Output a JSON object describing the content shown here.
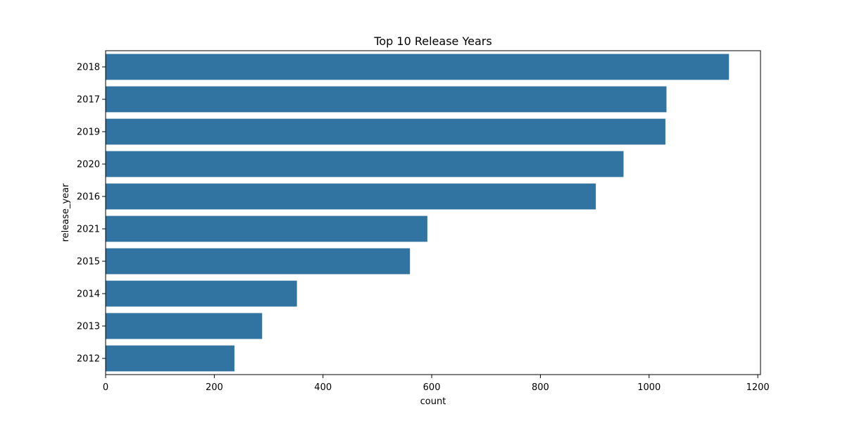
{
  "chart_data": {
    "type": "bar",
    "orientation": "horizontal",
    "title": "Top 10 Release Years",
    "xlabel": "count",
    "ylabel": "release_year",
    "categories": [
      "2018",
      "2017",
      "2019",
      "2020",
      "2016",
      "2021",
      "2015",
      "2014",
      "2013",
      "2012"
    ],
    "values": [
      1147,
      1032,
      1030,
      953,
      902,
      592,
      560,
      352,
      288,
      237
    ],
    "xlim": [
      0,
      1205
    ],
    "xticks": [
      "0",
      "200",
      "400",
      "600",
      "800",
      "1000",
      "1200"
    ],
    "grid": false,
    "legend": "none",
    "bar_color": "#3274a1"
  }
}
